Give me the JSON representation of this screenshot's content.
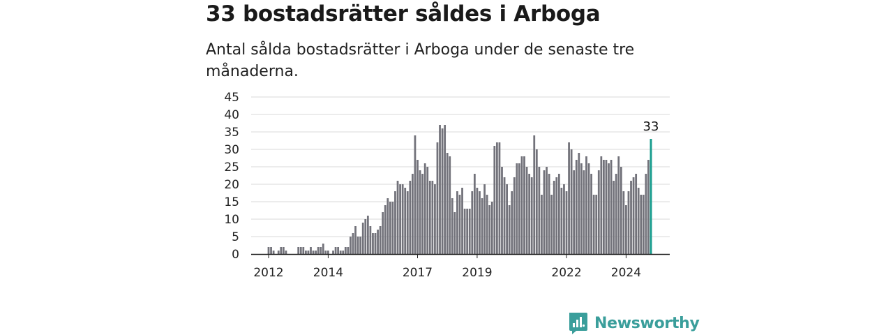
{
  "title": "33 bostadsrätter såldes i Arboga",
  "subtitle": "Antal sålda bostadsrätter i Arboga under de senaste tre månaderna.",
  "brand": {
    "name": "Newsworthy"
  },
  "colors": {
    "bar": "#72727a",
    "highlight": "#1a9e8f",
    "grid": "#d9d9d9",
    "axis": "#222222",
    "brand": "#3a9e9b"
  },
  "chart_data": {
    "type": "bar",
    "title": "",
    "xlabel": "",
    "ylabel": "",
    "ylim": [
      0,
      45
    ],
    "yticks": [
      "0",
      "5",
      "10",
      "15",
      "20",
      "25",
      "30",
      "35",
      "40",
      "45"
    ],
    "xticks": [
      "2012",
      "2014",
      "2017",
      "2019",
      "2022",
      "2024"
    ],
    "grid": true,
    "start_year": 2012,
    "values": [
      2,
      2,
      1,
      0,
      1,
      2,
      2,
      1,
      0,
      0,
      0,
      0,
      2,
      2,
      2,
      1,
      1,
      2,
      1,
      1,
      2,
      2,
      3,
      1,
      1,
      0,
      1,
      2,
      2,
      1,
      1,
      2,
      2,
      5,
      6,
      8,
      5,
      5,
      9,
      10,
      11,
      8,
      6,
      6,
      7,
      8,
      12,
      14,
      16,
      15,
      15,
      18,
      21,
      20,
      20,
      19,
      18,
      21,
      23,
      34,
      27,
      24,
      23,
      26,
      25,
      21,
      21,
      20,
      32,
      37,
      36,
      37,
      29,
      28,
      16,
      12,
      18,
      17,
      19,
      13,
      13,
      13,
      18,
      23,
      19,
      18,
      16,
      20,
      17,
      14,
      15,
      31,
      32,
      32,
      25,
      22,
      20,
      14,
      18,
      22,
      26,
      26,
      28,
      28,
      25,
      23,
      22,
      34,
      30,
      25,
      17,
      24,
      25,
      23,
      17,
      21,
      22,
      23,
      19,
      20,
      18,
      32,
      30,
      24,
      27,
      29,
      26,
      24,
      28,
      26,
      23,
      17,
      17,
      24,
      28,
      27,
      27,
      26,
      27,
      21,
      23,
      28,
      25,
      18,
      14,
      18,
      21,
      22,
      23,
      19,
      17,
      17,
      23,
      27,
      33
    ],
    "highlight_last": true,
    "annotation": {
      "label": "33"
    }
  }
}
